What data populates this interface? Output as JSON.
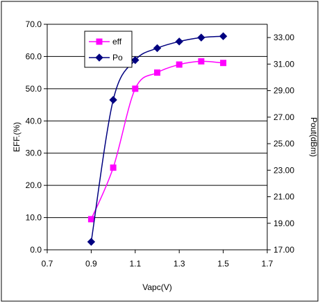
{
  "chart_data": {
    "type": "line",
    "xlabel": "Vapc(V)",
    "ylabel_left": "EFF.(%)",
    "ylabel_right": "Pout(dBm)",
    "xlim": [
      0.7,
      1.7
    ],
    "x_ticks": [
      "0.7",
      "0.9",
      "1.1",
      "1.3",
      "1.5",
      "1.7"
    ],
    "ylim_left": [
      0,
      70
    ],
    "y_ticks_left": [
      "0.0",
      "10.0",
      "20.0",
      "30.0",
      "40.0",
      "50.0",
      "60.0",
      "70.0"
    ],
    "ylim_right": [
      17,
      34
    ],
    "y_ticks_right": [
      "17.00",
      "19.00",
      "21.00",
      "23.00",
      "25.00",
      "27.00",
      "29.00",
      "31.00",
      "33.00"
    ],
    "grid": "horizontal",
    "legend": "top-left",
    "series": [
      {
        "name": "eff",
        "axis": "left",
        "color": "#ff00ff",
        "marker": "square",
        "x": [
          0.9,
          1.0,
          1.1,
          1.2,
          1.3,
          1.4,
          1.5
        ],
        "y": [
          9.5,
          25.5,
          50.0,
          55.0,
          57.5,
          58.5,
          58.0
        ]
      },
      {
        "name": "Po",
        "axis": "right",
        "color": "#000080",
        "marker": "diamond",
        "x": [
          0.9,
          1.0,
          1.1,
          1.2,
          1.3,
          1.4,
          1.5
        ],
        "y": [
          17.6,
          28.3,
          31.3,
          32.2,
          32.7,
          33.0,
          33.1
        ]
      }
    ]
  }
}
